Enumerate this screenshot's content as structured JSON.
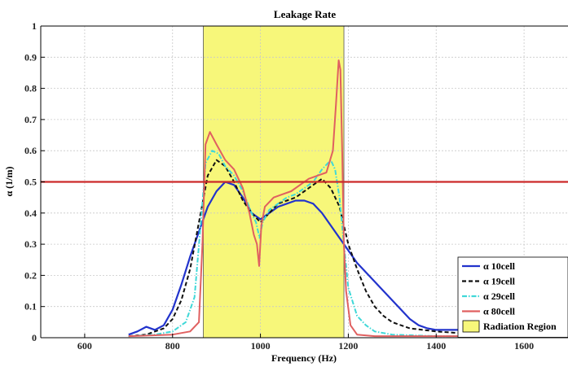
{
  "chart_data": {
    "type": "line",
    "title": "Leakage Rate",
    "xlabel": "Frequency (Hz)",
    "ylabel": "α (1/m)",
    "xlim": [
      500,
      1700
    ],
    "ylim": [
      0,
      1
    ],
    "x_ticks": [
      600,
      800,
      1000,
      1200,
      1400,
      1600
    ],
    "y_ticks": [
      0,
      0.1,
      0.2,
      0.3,
      0.4,
      0.5,
      0.6,
      0.7,
      0.8,
      0.9,
      1
    ],
    "grid": true,
    "legend_position": "bottom-right",
    "region": {
      "name": "Radiation Region",
      "x_start": 870,
      "x_end": 1190,
      "color": "#f7f77a"
    },
    "threshold": {
      "y": 0.5,
      "color": "#cc2a2a"
    },
    "series": [
      {
        "name": "α 10cell",
        "color": "#2233cc",
        "style": "solid",
        "x": [
          700,
          720,
          740,
          760,
          780,
          800,
          820,
          840,
          860,
          880,
          900,
          920,
          940,
          960,
          980,
          1000,
          1020,
          1040,
          1060,
          1080,
          1100,
          1120,
          1140,
          1160,
          1180,
          1200,
          1220,
          1240,
          1260,
          1280,
          1300,
          1320,
          1340,
          1360,
          1380,
          1400,
          1450,
          1500,
          1550,
          1600
        ],
        "y": [
          0.01,
          0.02,
          0.035,
          0.025,
          0.04,
          0.09,
          0.17,
          0.26,
          0.34,
          0.42,
          0.47,
          0.5,
          0.49,
          0.45,
          0.4,
          0.38,
          0.4,
          0.42,
          0.43,
          0.44,
          0.44,
          0.43,
          0.4,
          0.36,
          0.32,
          0.28,
          0.24,
          0.21,
          0.18,
          0.15,
          0.12,
          0.09,
          0.06,
          0.04,
          0.03,
          0.025,
          0.025,
          0.025,
          0.02,
          0.02
        ]
      },
      {
        "name": "α 19cell",
        "color": "#111111",
        "style": "dashed",
        "x": [
          700,
          740,
          780,
          800,
          820,
          840,
          860,
          880,
          900,
          920,
          940,
          960,
          980,
          1000,
          1020,
          1040,
          1060,
          1080,
          1100,
          1120,
          1140,
          1160,
          1180,
          1200,
          1220,
          1240,
          1260,
          1280,
          1300,
          1340,
          1400,
          1450,
          1500,
          1550,
          1600
        ],
        "y": [
          0.005,
          0.01,
          0.03,
          0.06,
          0.12,
          0.22,
          0.37,
          0.52,
          0.57,
          0.55,
          0.5,
          0.44,
          0.4,
          0.37,
          0.4,
          0.43,
          0.44,
          0.45,
          0.47,
          0.49,
          0.51,
          0.48,
          0.42,
          0.3,
          0.22,
          0.15,
          0.1,
          0.07,
          0.05,
          0.03,
          0.02,
          0.015,
          0.01,
          0.01,
          0.01
        ]
      },
      {
        "name": "α 29cell",
        "color": "#40d8d8",
        "style": "dash-dot",
        "x": [
          700,
          760,
          800,
          830,
          850,
          865,
          875,
          890,
          905,
          920,
          940,
          960,
          980,
          990,
          998,
          1005,
          1020,
          1040,
          1060,
          1080,
          1100,
          1120,
          1140,
          1160,
          1170,
          1180,
          1190,
          1200,
          1220,
          1240,
          1260,
          1300,
          1400,
          1500,
          1600
        ],
        "y": [
          0.005,
          0.01,
          0.02,
          0.05,
          0.13,
          0.38,
          0.56,
          0.6,
          0.59,
          0.55,
          0.52,
          0.47,
          0.4,
          0.37,
          0.32,
          0.37,
          0.41,
          0.43,
          0.45,
          0.46,
          0.48,
          0.5,
          0.54,
          0.57,
          0.54,
          0.45,
          0.3,
          0.16,
          0.07,
          0.04,
          0.02,
          0.01,
          0.005,
          0.005,
          0.005
        ]
      },
      {
        "name": "α 80cell",
        "color": "#e06060",
        "style": "solid",
        "x": [
          700,
          800,
          840,
          860,
          868,
          875,
          885,
          900,
          920,
          940,
          960,
          975,
          985,
          992,
          997,
          1002,
          1010,
          1030,
          1050,
          1070,
          1090,
          1110,
          1130,
          1150,
          1165,
          1172,
          1178,
          1182,
          1186,
          1190,
          1195,
          1205,
          1220,
          1260,
          1400,
          1600
        ],
        "y": [
          0.005,
          0.01,
          0.02,
          0.05,
          0.3,
          0.62,
          0.66,
          0.62,
          0.57,
          0.54,
          0.48,
          0.4,
          0.33,
          0.3,
          0.23,
          0.36,
          0.42,
          0.45,
          0.46,
          0.47,
          0.49,
          0.51,
          0.52,
          0.53,
          0.6,
          0.75,
          0.89,
          0.86,
          0.6,
          0.3,
          0.15,
          0.04,
          0.01,
          0.005,
          0.005,
          0.005
        ]
      }
    ]
  }
}
